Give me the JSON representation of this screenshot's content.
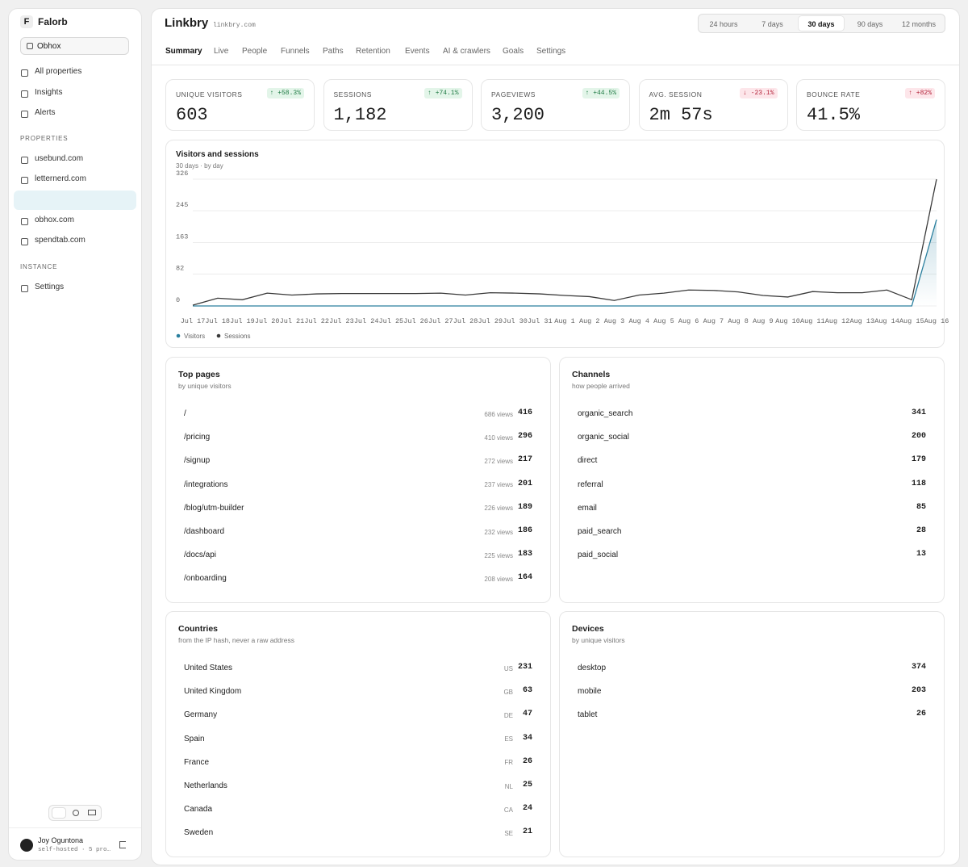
{
  "sidebar": {
    "brand_initial": "F",
    "brand": "Falorb",
    "workspace": "Obhox",
    "nav": [
      "All properties",
      "Insights",
      "Alerts"
    ],
    "properties_heading": "PROPERTIES",
    "properties": [
      "usebund.com",
      "letternerd.com",
      "obhox.com",
      "spendtab.com"
    ],
    "instance_heading": "INSTANCE",
    "instance": [
      "Settings"
    ],
    "user": {
      "name": "Joy Oguntona",
      "meta": "self-hosted · 5 pro…"
    }
  },
  "header": {
    "title": "Linkbry",
    "domain": "linkbry.com",
    "ranges": [
      "24 hours",
      "7 days",
      "30 days",
      "90 days",
      "12 months"
    ],
    "active_range": "30 days",
    "tabs": [
      "Summary",
      "Live",
      "People",
      "Funnels",
      "Paths",
      "Retention",
      "Events",
      "AI & crawlers",
      "Goals",
      "Settings"
    ],
    "active_tab": "Summary"
  },
  "stats": [
    {
      "label": "UNIQUE VISITORS",
      "delta": "↑ +58.3%",
      "delta_color": "#1e7a43",
      "delta_bg": "#e3f5e9",
      "value": "603"
    },
    {
      "label": "SESSIONS",
      "delta": "↑ +74.1%",
      "delta_color": "#1e7a43",
      "delta_bg": "#e3f5e9",
      "value": "1,182"
    },
    {
      "label": "PAGEVIEWS",
      "delta": "↑ +44.5%",
      "delta_color": "#1e7a43",
      "delta_bg": "#e3f5e9",
      "value": "3,200"
    },
    {
      "label": "AVG. SESSION",
      "delta": "↓ -23.1%",
      "delta_color": "#b4233a",
      "delta_bg": "#fde6ea",
      "value": "2m 57s"
    },
    {
      "label": "BOUNCE RATE",
      "delta": "↑ +82%",
      "delta_color": "#b4233a",
      "delta_bg": "#fde6ea",
      "value": "41.5%"
    }
  ],
  "chart_data": {
    "type": "line",
    "title": "Visitors and sessions",
    "subtitle": "30 days · by day",
    "categories": [
      "Jul 17",
      "Jul 18",
      "Jul 19",
      "Jul 20",
      "Jul 21",
      "Jul 22",
      "Jul 23",
      "Jul 24",
      "Jul 25",
      "Jul 26",
      "Jul 27",
      "Jul 28",
      "Jul 29",
      "Jul 30",
      "Jul 31",
      "Aug 1",
      "Aug 2",
      "Aug 3",
      "Aug 4",
      "Aug 5",
      "Aug 6",
      "Aug 7",
      "Aug 8",
      "Aug 9",
      "Aug 10",
      "Aug 11",
      "Aug 12",
      "Aug 13",
      "Aug 14",
      "Aug 15",
      "Aug 16"
    ],
    "series": [
      {
        "name": "Visitors",
        "color": "#2a7f9e",
        "values": [
          0,
          0,
          0,
          0,
          0,
          0,
          0,
          0,
          0,
          0,
          0,
          0,
          0,
          0,
          0,
          0,
          0,
          0,
          0,
          0,
          0,
          0,
          0,
          0,
          0,
          0,
          0,
          0,
          0,
          0,
          222
        ]
      },
      {
        "name": "Sessions",
        "color": "#3a3a3a",
        "values": [
          2,
          20,
          16,
          33,
          28,
          31,
          32,
          32,
          32,
          32,
          33,
          28,
          34,
          33,
          31,
          27,
          24,
          14,
          28,
          33,
          41,
          40,
          36,
          27,
          23,
          37,
          34,
          34,
          41,
          16,
          326
        ]
      }
    ],
    "ylim": [
      0,
      326
    ],
    "yticks": [
      0,
      82,
      163,
      245,
      326
    ],
    "grid": true,
    "legend": "bottom-left"
  },
  "tables": {
    "top_pages": {
      "title": "Top pages",
      "subtitle": "by unique visitors",
      "rows": [
        {
          "label": "/",
          "detail": "686 views",
          "value": 416
        },
        {
          "label": "/pricing",
          "detail": "410 views",
          "value": 296
        },
        {
          "label": "/signup",
          "detail": "272 views",
          "value": 217
        },
        {
          "label": "/integrations",
          "detail": "237 views",
          "value": 201
        },
        {
          "label": "/blog/utm-builder",
          "detail": "226 views",
          "value": 189
        },
        {
          "label": "/dashboard",
          "detail": "232 views",
          "value": 186
        },
        {
          "label": "/docs/api",
          "detail": "225 views",
          "value": 183
        },
        {
          "label": "/onboarding",
          "detail": "208 views",
          "value": 164
        }
      ]
    },
    "channels": {
      "title": "Channels",
      "subtitle": "how people arrived",
      "rows": [
        {
          "label": "organic_search",
          "value": 341
        },
        {
          "label": "organic_social",
          "value": 200
        },
        {
          "label": "direct",
          "value": 179
        },
        {
          "label": "referral",
          "value": 118
        },
        {
          "label": "email",
          "value": 85
        },
        {
          "label": "paid_search",
          "value": 28
        },
        {
          "label": "paid_social",
          "value": 13
        }
      ]
    },
    "countries": {
      "title": "Countries",
      "subtitle": "from the IP hash, never a raw address",
      "rows": [
        {
          "label": "United States",
          "detail": "US",
          "value": 231
        },
        {
          "label": "United Kingdom",
          "detail": "GB",
          "value": 63
        },
        {
          "label": "Germany",
          "detail": "DE",
          "value": 47
        },
        {
          "label": "Spain",
          "detail": "ES",
          "value": 34
        },
        {
          "label": "France",
          "detail": "FR",
          "value": 26
        },
        {
          "label": "Netherlands",
          "detail": "NL",
          "value": 25
        },
        {
          "label": "Canada",
          "detail": "CA",
          "value": 24
        },
        {
          "label": "Sweden",
          "detail": "SE",
          "value": 21
        }
      ]
    },
    "devices": {
      "title": "Devices",
      "subtitle": "by unique visitors",
      "rows": [
        {
          "label": "desktop",
          "value": 374
        },
        {
          "label": "mobile",
          "value": 203
        },
        {
          "label": "tablet",
          "value": 26
        }
      ]
    }
  }
}
